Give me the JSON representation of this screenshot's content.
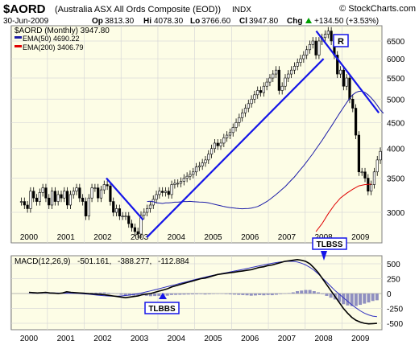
{
  "header": {
    "symbol": "$AORD",
    "description": "(Australia ASX All Ords Composite (EOD))",
    "exchange": "INDX",
    "watermark": "© StockCharts.com",
    "date": "30-Jun-2009",
    "op_label": "Op",
    "op": "3813.30",
    "hi_label": "Hi",
    "hi": "4078.30",
    "lo_label": "Lo",
    "lo": "3766.60",
    "cl_label": "Cl",
    "cl": "3947.80",
    "chg_label": "Chg",
    "chg": "+134.50 (+3.53%)",
    "chg_arrow": "up-arrow"
  },
  "legend": {
    "main": "$AORD (Monthly) 3947.80",
    "ema50": "EMA(50) 4690.22",
    "ema200": "EMA(200) 3406.79"
  },
  "annotations": {
    "r_label": "R",
    "tlbss": "TLBSS",
    "tlbbs": "TLBBS"
  },
  "macd_legend": {
    "prefix": "MACD(12,26,9)",
    "v1": "-501.161,",
    "v2": "-388.277,",
    "v3": "-112.884"
  },
  "colors": {
    "panel_bg": "#fdfde6",
    "grid": "#d8d8d8",
    "price": "#000000",
    "ema50": "#1c1ca8",
    "ema200": "#e00000",
    "trendline": "#1515e8",
    "macd": "#000000",
    "signal": "#3030c0",
    "hist": "#9090c0",
    "zero": "#a0a0a0"
  },
  "chart_data": [
    {
      "type": "candlestick",
      "title": "$AORD (Australia ASX All Ords Composite (EOD)) INDX",
      "scale": "log",
      "x_labels": [
        "2000",
        "2001",
        "2002",
        "2003",
        "2004",
        "2005",
        "2006",
        "2007",
        "2008",
        "2009"
      ],
      "y_ticks": [
        3000,
        3500,
        4000,
        4500,
        5000,
        5500,
        6000,
        6500
      ],
      "monthly_close": [
        3150,
        3100,
        3050,
        3300,
        3200,
        3150,
        3280,
        3350,
        3200,
        3100,
        3300,
        3150,
        3250,
        3200,
        3300,
        3100,
        3250,
        3300,
        3350,
        3200,
        3150,
        2950,
        3200,
        3350,
        3350,
        3200,
        3320,
        3400,
        3380,
        3150,
        3000,
        3050,
        2950,
        2950,
        2950,
        2850,
        2800,
        2750,
        2720,
        2960,
        3000,
        3050,
        3100,
        3180,
        3250,
        3300,
        3280,
        3300,
        3250,
        3400,
        3420,
        3420,
        3450,
        3500,
        3530,
        3560,
        3600,
        3680,
        3700,
        3750,
        3800,
        3900,
        4000,
        4100,
        4050,
        4100,
        4200,
        4250,
        4300,
        4400,
        4500,
        4600,
        4700,
        4800,
        4900,
        5000,
        5100,
        5200,
        5150,
        5300,
        5400,
        5500,
        5600,
        5700,
        5200,
        5300,
        5500,
        5600,
        5700,
        5800,
        5900,
        6000,
        6100,
        6250,
        6400,
        6500,
        6100,
        6500,
        6600,
        6700,
        6800,
        6500,
        6100,
        5600,
        5700,
        5300,
        5500,
        5000,
        4800,
        4250,
        3600,
        3600,
        3500,
        3300,
        3400,
        3600,
        3800,
        3950
      ],
      "ema50": [
        3150,
        3153,
        3148,
        3132,
        3128,
        3122,
        3130,
        3130,
        3135,
        3140,
        3140,
        3145,
        3150,
        3150,
        3152,
        3148,
        3145,
        3142,
        3140,
        3138,
        3130,
        3120,
        3110,
        3100,
        3090,
        3080,
        3072,
        3065,
        3060,
        3055,
        3050,
        3048,
        3050,
        3052,
        3058,
        3068,
        3080,
        3100,
        3125,
        3150,
        3180,
        3215,
        3250,
        3290,
        3330,
        3370,
        3420,
        3470,
        3520,
        3580,
        3640,
        3700,
        3770,
        3840,
        3910,
        3990,
        4070,
        4150,
        4240,
        4330,
        4420,
        4520,
        4620,
        4720,
        4820,
        4920,
        5020,
        5100,
        5150,
        5180,
        5180,
        5150,
        5100,
        5030,
        4950,
        4860,
        4760,
        4690
      ],
      "ema50_start_month": 41,
      "ema200": [
        2750,
        2850,
        2980,
        3100,
        3200,
        3270,
        3330,
        3380,
        3400,
        3406.79
      ],
      "ema200_start_month": 96,
      "trendlines": [
        {
          "from": [
            2002.1,
            3500
          ],
          "to": [
            2003.1,
            2900
          ]
        },
        {
          "from": [
            2003.2,
            2680
          ],
          "to": [
            2008.0,
            6000
          ]
        },
        {
          "from": [
            2007.8,
            6800
          ],
          "to": [
            2009.5,
            4700
          ]
        }
      ],
      "legend": [
        "$AORD (Monthly) 3947.80",
        "EMA(50) 4690.22",
        "EMA(200) 3406.79"
      ]
    },
    {
      "type": "line",
      "title": "MACD(12,26,9) -501.161, -388.277, -112.884",
      "y_ticks": [
        -500,
        -250,
        0,
        250,
        500
      ],
      "ylim": [
        -600,
        650
      ],
      "macd": [
        20,
        15,
        10,
        15,
        20,
        10,
        5,
        0,
        10,
        30,
        20,
        15,
        10,
        5,
        0,
        -5,
        -10,
        -15,
        -20,
        -30,
        -40,
        -50,
        -60,
        -70,
        -60,
        -50,
        -40,
        -20,
        -10,
        0,
        20,
        40,
        60,
        80,
        110,
        130,
        150,
        170,
        190,
        210,
        230,
        250,
        260,
        280,
        300,
        320,
        330,
        340,
        350,
        360,
        370,
        380,
        390,
        400,
        420,
        440,
        450,
        470,
        480,
        500,
        520,
        540,
        550,
        560,
        570,
        560,
        540,
        500,
        430,
        350,
        250,
        150,
        50,
        -50,
        -150,
        -250,
        -330,
        -400,
        -450,
        -480,
        -500,
        -510,
        -505,
        -501
      ],
      "signal": [
        15,
        15,
        14,
        14,
        13,
        12,
        10,
        8,
        7,
        6,
        5,
        3,
        0,
        -5,
        -10,
        -18,
        -25,
        -32,
        -38,
        -42,
        -44,
        -44,
        -40,
        -34,
        -25,
        -15,
        -2,
        12,
        28,
        45,
        62,
        80,
        98,
        116,
        134,
        152,
        170,
        188,
        206,
        224,
        242,
        260,
        276,
        292,
        308,
        322,
        336,
        350,
        364,
        378,
        392,
        406,
        420,
        436,
        452,
        466,
        480,
        494,
        508,
        520,
        530,
        538,
        542,
        540,
        530,
        510,
        480,
        440,
        390,
        330,
        260,
        190,
        120,
        50,
        -10,
        -70,
        -130,
        -190,
        -240,
        -290,
        -330,
        -360,
        -380,
        -388
      ],
      "histogram": [
        5,
        0,
        -4,
        1,
        7,
        -2,
        -5,
        -8,
        3,
        24,
        15,
        12,
        10,
        10,
        10,
        13,
        15,
        17,
        18,
        12,
        4,
        -6,
        -20,
        -36,
        -35,
        -35,
        -38,
        -32,
        -38,
        -45,
        -42,
        -40,
        -38,
        -36,
        -24,
        -22,
        -20,
        -18,
        -16,
        -14,
        -12,
        -10,
        -16,
        -12,
        -8,
        -2,
        -6,
        -10,
        -14,
        -18,
        -22,
        -26,
        -30,
        -36,
        -32,
        -26,
        -30,
        -24,
        -28,
        -20,
        -10,
        2,
        8,
        20,
        40,
        50,
        60,
        60,
        40,
        20,
        -10,
        -40,
        -70,
        -100,
        -140,
        -180,
        -200,
        -210,
        -210,
        -190,
        -170,
        -150,
        -125,
        -113
      ]
    }
  ]
}
